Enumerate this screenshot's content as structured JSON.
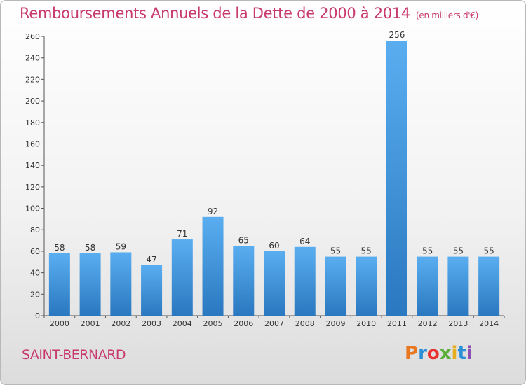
{
  "header": {
    "title": "Remboursements Annuels de la Dette de 2000 à 2014",
    "unit": "(en milliers d'€)"
  },
  "footer": {
    "city": "SAINT-BERNARD",
    "brand": "Proxiti",
    "brand_colors": [
      "#e87722",
      "#2a8fd6",
      "#e8302f",
      "#5aae3a",
      "#e5ae1e",
      "#2a8fd6",
      "#8a4fb0"
    ]
  },
  "colors": {
    "accent": "#c83a6e",
    "bar_top": "#5aaef0",
    "bar_bottom": "#2a78c0"
  },
  "chart_data": {
    "type": "bar",
    "title": "Remboursements Annuels de la Dette de 2000 à 2014",
    "xlabel": "",
    "ylabel": "",
    "categories": [
      "2000",
      "2001",
      "2002",
      "2003",
      "2004",
      "2005",
      "2006",
      "2007",
      "2008",
      "2009",
      "2010",
      "2011",
      "2012",
      "2013",
      "2014"
    ],
    "values": [
      58,
      58,
      59,
      47,
      71,
      92,
      65,
      60,
      64,
      55,
      55,
      256,
      55,
      55,
      55
    ],
    "ylim": [
      0,
      260
    ],
    "yticks": [
      0,
      20,
      40,
      60,
      80,
      100,
      120,
      140,
      160,
      180,
      200,
      220,
      240,
      260
    ],
    "grid": false,
    "legend": "none"
  }
}
